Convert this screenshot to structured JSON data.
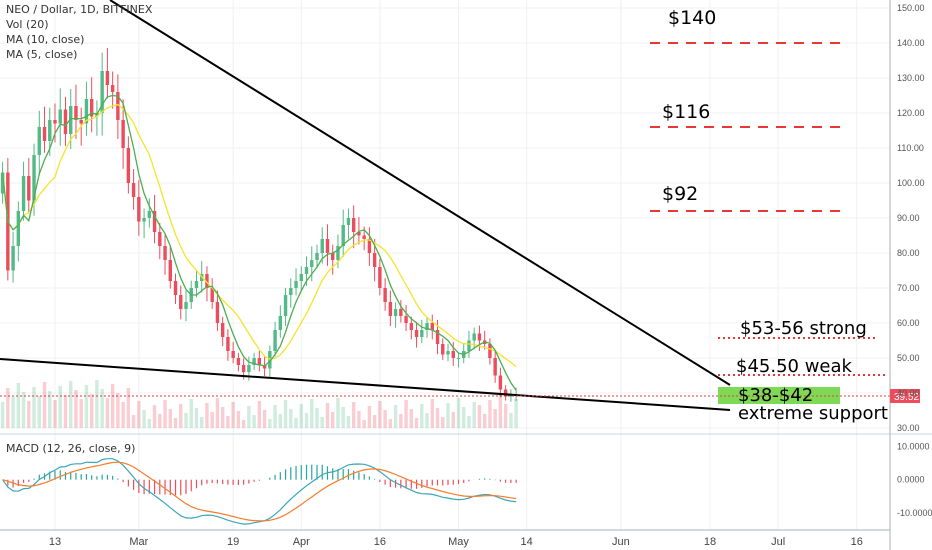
{
  "header": {
    "symbol_line": "NEO / Dollar, 1D, BITFINEX",
    "indicators": [
      "Vol (20)",
      "MA (10, close)",
      "MA (5, close)"
    ]
  },
  "macd": {
    "label": "MACD (12, 26, close, 9)"
  },
  "price_label": "39.52",
  "colors": {
    "up": "#53b987",
    "down": "#eb4d5c",
    "ma10": "#f5e42a",
    "ma5": "#4caf50",
    "macd_line": "#3aa6b9",
    "signal_line": "#f57c2a",
    "target_line": "#e53935",
    "zone": "#7ed957"
  },
  "annotations": {
    "t140": "$140",
    "t116": "$116",
    "t92": "$92",
    "z1": "$53-56 strong",
    "z2": "$45.50 weak",
    "z3": "$38-$42",
    "z4": "extreme support"
  },
  "chart_data": {
    "type": "candlestick",
    "y_ticks": [
      "150.00",
      "140.00",
      "130.00",
      "120.00",
      "110.00",
      "100.00",
      "90.00",
      "80.00",
      "70.00",
      "60.00",
      "50.00",
      "40.00",
      "30.00"
    ],
    "macd_ticks": [
      "10.0000",
      "0.0000",
      "-10.0000"
    ],
    "x_ticks": [
      "13",
      "Mar",
      "19",
      "Apr",
      "16",
      "May",
      "14",
      "Jun",
      "18",
      "Jul",
      "16"
    ],
    "x_tick_dates": [
      "2018-02-13",
      "2018-03-01",
      "2018-03-19",
      "2018-04-01",
      "2018-04-16",
      "2018-05-01",
      "2018-05-14",
      "2018-06-01",
      "2018-06-18",
      "2018-07-01",
      "2018-07-16"
    ],
    "ylim": [
      30,
      150
    ],
    "macd_ylim": [
      -14,
      12
    ],
    "first_date": "2018-02-03",
    "close": [
      103,
      75,
      82,
      92,
      102,
      95,
      108,
      116,
      112,
      118,
      117,
      121,
      114,
      122,
      118,
      117,
      124,
      119,
      120,
      132,
      128,
      126,
      118,
      110,
      100,
      96,
      89,
      90,
      92,
      86,
      82,
      78,
      72,
      68,
      64,
      66,
      70,
      72,
      74,
      70,
      66,
      60,
      56,
      52,
      50,
      48,
      46,
      48,
      50,
      48,
      47,
      52,
      58,
      62,
      68,
      70,
      72,
      74,
      76,
      78,
      80,
      84,
      80,
      78,
      82,
      88,
      90,
      86,
      85,
      84,
      80,
      76,
      70,
      66,
      62,
      64,
      62,
      60,
      58,
      56,
      58,
      60,
      58,
      54,
      51,
      52,
      50,
      50,
      52,
      55,
      57,
      55,
      54,
      50,
      45,
      41,
      39,
      39.5,
      39.52
    ]
  },
  "targets": [
    {
      "label_key": "t140",
      "price": 140
    },
    {
      "label_key": "t116",
      "price": 116
    },
    {
      "label_key": "t92",
      "price": 92
    }
  ]
}
